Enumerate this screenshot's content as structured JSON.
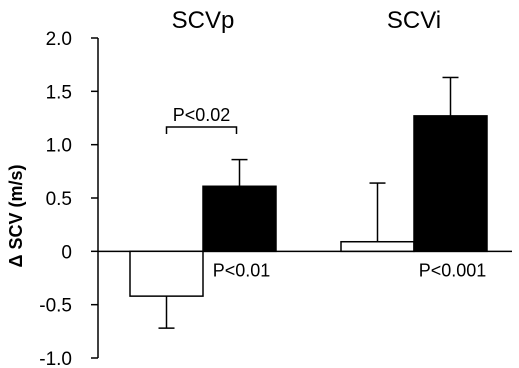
{
  "chart_data": {
    "type": "bar",
    "ylabel": "Δ SCV (m/s)",
    "ylim": [
      -1.0,
      2.0
    ],
    "yticks": [
      2.0,
      1.5,
      1.0,
      0.5,
      0,
      -0.5,
      -1.0
    ],
    "ytick_labels": [
      "2.0",
      "1.5",
      "1.0",
      "0.5",
      "0",
      "-0.5",
      "-1.0"
    ],
    "groups": [
      {
        "title": "SCVp",
        "bars": [
          {
            "fill": "#ffffff",
            "value": -0.42,
            "error": 0.3
          },
          {
            "fill": "#000000",
            "value": 0.61,
            "error": 0.25
          }
        ],
        "p_value_label": "P<0.01",
        "bracket_label": "P<0.02"
      },
      {
        "title": "SCVi",
        "bars": [
          {
            "fill": "#ffffff",
            "value": 0.09,
            "error": 0.55
          },
          {
            "fill": "#000000",
            "value": 1.27,
            "error": 0.36
          }
        ],
        "p_value_label": "P<0.001"
      }
    ],
    "grid": false
  }
}
